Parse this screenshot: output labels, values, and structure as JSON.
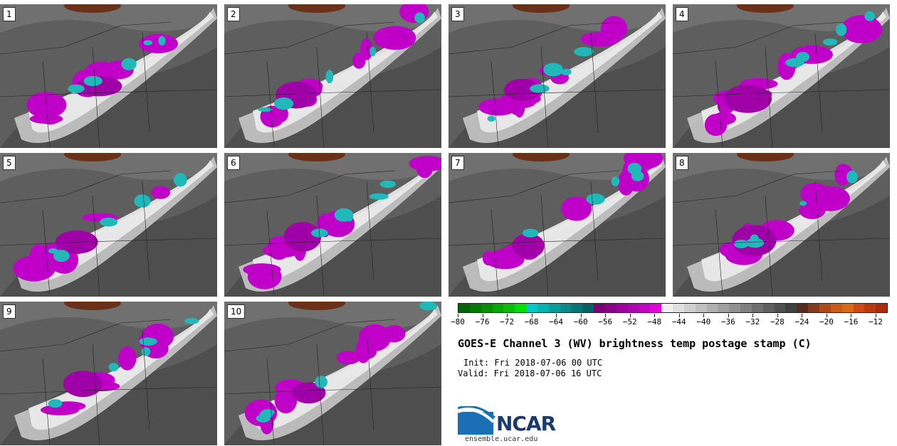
{
  "title": "GOES-E Channel 3 (WV) brightness temp postage stamp (C)",
  "init_line": "Init: Fri 2018-07-06 00 UTC",
  "valid_line": "Valid: Fri 2018-07-06 16 UTC",
  "org_name": "NCAR",
  "url": "ensemble.ucar.edu",
  "panels": [
    {
      "label": "1"
    },
    {
      "label": "2"
    },
    {
      "label": "3"
    },
    {
      "label": "4"
    },
    {
      "label": "5"
    },
    {
      "label": "6"
    },
    {
      "label": "7"
    },
    {
      "label": "8"
    },
    {
      "label": "9"
    },
    {
      "label": "10"
    }
  ],
  "colorbar": {
    "tick_labels": [
      "−80",
      "−76",
      "−72",
      "−68",
      "−64",
      "−60",
      "−56",
      "−52",
      "−48",
      "−44",
      "−40",
      "−36",
      "−32",
      "−28",
      "−24",
      "−20",
      "−16",
      "−12"
    ],
    "colors": [
      "#006400",
      "#007a00",
      "#009000",
      "#00a800",
      "#00c000",
      "#00e000",
      "#00c8c8",
      "#00b4b4",
      "#00a0a0",
      "#008c8c",
      "#007878",
      "#006464",
      "#7a007a",
      "#8c008c",
      "#a000a0",
      "#b400b4",
      "#c800c8",
      "#e000e0",
      "#f0f0f0",
      "#e0e0e0",
      "#d0d0d0",
      "#c0c0c0",
      "#b0b0b0",
      "#a0a0a0",
      "#909090",
      "#808080",
      "#707070",
      "#606060",
      "#505050",
      "#404040",
      "#5a2a1a",
      "#8a3a1a",
      "#b04a10",
      "#d05a10",
      "#e06a10",
      "#d04a10",
      "#c03a08",
      "#b02a00"
    ]
  }
}
